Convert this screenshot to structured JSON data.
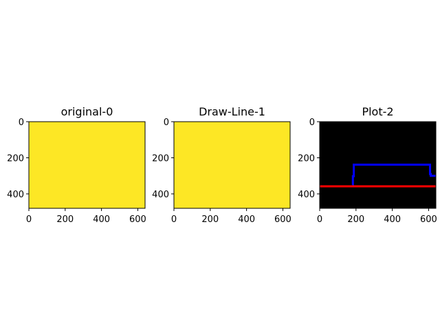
{
  "colors": {
    "yellow": "#fde725",
    "black": "#000000",
    "blue": "#0000ff",
    "red": "#ff0000",
    "axis": "#000000"
  },
  "chart_data": [
    {
      "type": "image",
      "title": "original-0",
      "xlim": [
        0,
        640
      ],
      "ylim": [
        480,
        0
      ],
      "xticks": [
        "0",
        "200",
        "400",
        "600"
      ],
      "yticks": [
        "0",
        "200",
        "400"
      ],
      "fill": "#fde725",
      "lines": []
    },
    {
      "type": "image",
      "title": "Draw-Line-1",
      "xlim": [
        0,
        640
      ],
      "ylim": [
        480,
        0
      ],
      "xticks": [
        "0",
        "200",
        "400",
        "600"
      ],
      "yticks": [
        "0",
        "200",
        "400"
      ],
      "fill": "#fde725",
      "lines": []
    },
    {
      "type": "image",
      "title": "Plot-2",
      "xlim": [
        0,
        640
      ],
      "ylim": [
        480,
        0
      ],
      "xticks": [
        "0",
        "200",
        "400",
        "600"
      ],
      "yticks": [
        "0",
        "200",
        "400"
      ],
      "fill": "#000000",
      "lines": [
        {
          "color": "#0000ff",
          "x": [
            180,
            183,
            183,
            188,
            188,
            608,
            608,
            612,
            612,
            640
          ],
          "y": [
            350,
            350,
            302,
            302,
            238,
            238,
            290,
            290,
            300,
            300
          ]
        },
        {
          "color": "#ff0000",
          "x": [
            0,
            640
          ],
          "y": [
            358,
            358
          ]
        }
      ]
    }
  ]
}
